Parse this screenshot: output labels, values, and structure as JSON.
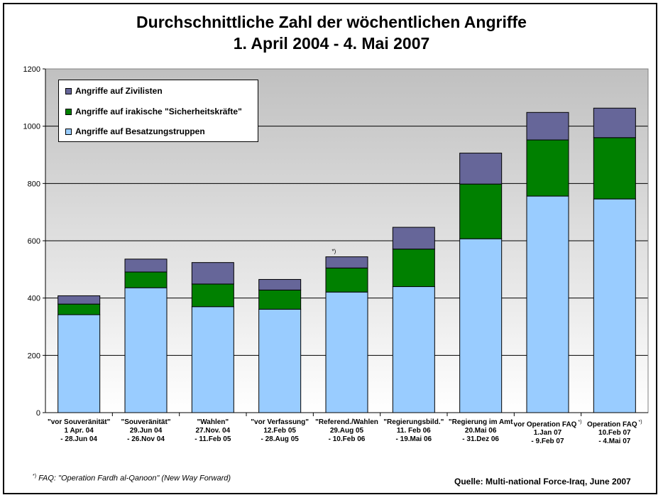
{
  "chart_data": {
    "type": "bar",
    "stacked": true,
    "title": "Durchschnittliche Zahl der wöchentlichen Angriffe",
    "subtitle": "1. April 2004 - 4. Mai 2007",
    "ylim": [
      0,
      1200
    ],
    "yticks": [
      "0",
      "200",
      "400",
      "600",
      "800",
      "1000",
      "1200"
    ],
    "grid": true,
    "legend_position": "top-left",
    "categories": [
      {
        "lines": [
          "\"vor Souveränität\"",
          "1 Apr. 04",
          "- 28.Jun 04"
        ],
        "mark": ""
      },
      {
        "lines": [
          "\"Souveränität\"",
          "29.Jun 04",
          "- 26.Nov 04"
        ],
        "mark": ""
      },
      {
        "lines": [
          "\"Wahlen\"",
          "27.Nov. 04",
          "- 11.Feb 05"
        ],
        "mark": ""
      },
      {
        "lines": [
          "\"vor Verfassung\"",
          "12.Feb 05",
          "- 28.Aug 05"
        ],
        "mark": ""
      },
      {
        "lines": [
          "\"Referend./Wahlen",
          "29.Aug 05",
          "- 10.Feb 06"
        ],
        "mark": ""
      },
      {
        "lines": [
          "\"Regierungsbild.\"",
          "11. Feb 06",
          "- 19.Mai 06"
        ],
        "mark": ""
      },
      {
        "lines": [
          "\"Regierung im Amt",
          "20.Mai 06",
          "- 31.Dez 06"
        ],
        "mark": ""
      },
      {
        "lines": [
          "vor Operation FAQ",
          "1.Jan 07",
          "- 9.Feb 07"
        ],
        "mark": "*)"
      },
      {
        "lines": [
          "Operation FAQ",
          "10.Feb 07",
          "- 4.Mai 07"
        ],
        "mark": "*)"
      }
    ],
    "series": [
      {
        "name": "Angriffe auf Besatzungstruppen",
        "color": "#99ccff",
        "values": [
          342,
          436,
          370,
          361,
          421,
          440,
          607,
          756,
          746
        ]
      },
      {
        "name": "Angriffe auf irakische \"Sicherheitskräfte\"",
        "color": "#008000",
        "values": [
          37,
          55,
          79,
          67,
          84,
          131,
          191,
          196,
          214
        ]
      },
      {
        "name": "Angriffe auf Zivilisten",
        "color": "#666699",
        "values": [
          29,
          45,
          75,
          37,
          39,
          76,
          108,
          96,
          103
        ]
      }
    ],
    "annotation": "*)"
  },
  "legend": [
    {
      "label": "Angriffe auf Zivilisten",
      "color": "#666699"
    },
    {
      "label": "Angriffe auf irakische \"Sicherheitskräfte\"",
      "color": "#008000"
    },
    {
      "label": "Angriffe auf Besatzungstruppen",
      "color": "#99ccff"
    }
  ],
  "footnote": {
    "mark": "*)",
    "text": "FAQ: \"Operation Fardh al-Qanoon\" (New Way Forward)"
  },
  "source": "Quelle: Multi-national Force-Iraq, June 2007"
}
